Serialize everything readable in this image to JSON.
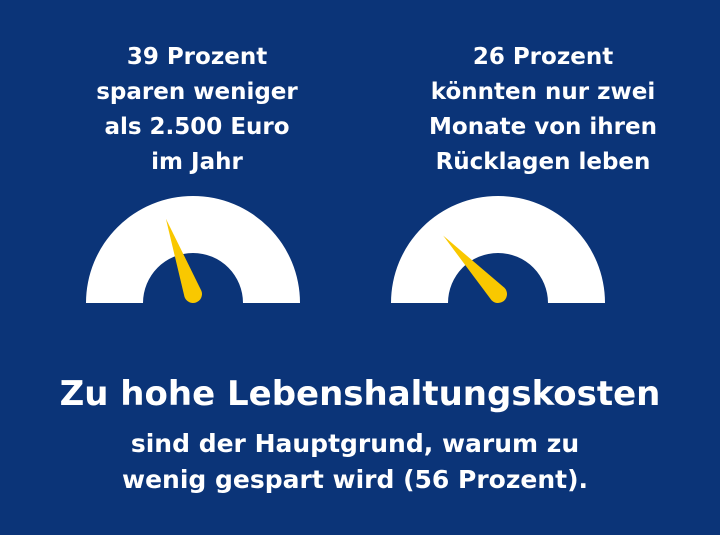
{
  "colors": {
    "background": "#0b3478",
    "gauge": "#ffffff",
    "needle": "#f9c800"
  },
  "gauges": [
    {
      "lines": [
        "39 Prozent",
        "sparen weniger",
        "als 2.500 Euro",
        "im Jahr"
      ],
      "percent": 39
    },
    {
      "lines": [
        "26 Prozent",
        "könnten nur zwei",
        "Monate von ihren",
        "Rücklagen leben"
      ],
      "percent": 26
    }
  ],
  "headline": "Zu hohe Lebenshaltungskosten",
  "subline": [
    "sind der Hauptgrund, warum zu",
    "wenig gespart wird (56 Prozent)."
  ]
}
